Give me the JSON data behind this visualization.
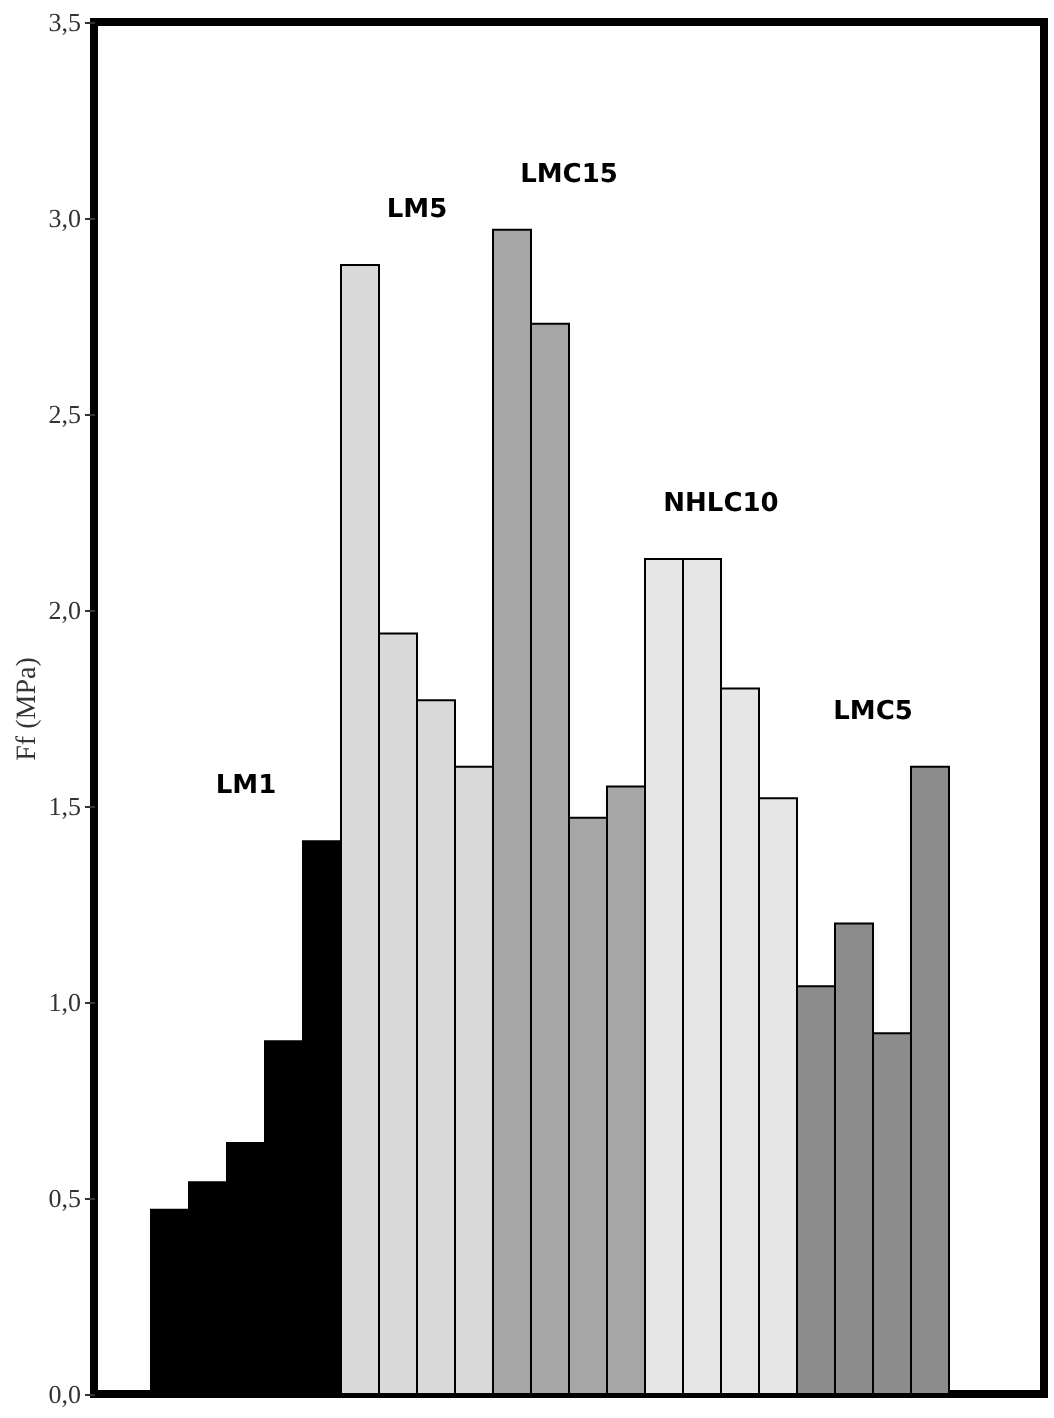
{
  "chart_data": {
    "type": "bar",
    "ylabel": "Ff (MPa)",
    "categories": [
      null,
      null,
      null,
      null,
      null,
      null,
      null,
      null,
      null,
      null,
      null,
      null,
      null,
      null,
      null,
      null,
      null,
      null,
      null,
      null,
      null
    ],
    "values": [
      0.47,
      0.54,
      0.64,
      0.9,
      1.41,
      2.88,
      1.94,
      1.77,
      1.6,
      2.97,
      2.73,
      1.47,
      1.55,
      2.13,
      2.13,
      1.8,
      1.52,
      1.04,
      1.2,
      0.92,
      1.6
    ],
    "colors": [
      "#000000",
      "#000000",
      "#000000",
      "#000000",
      "#000000",
      "#d9d9d9",
      "#d9d9d9",
      "#d9d9d9",
      "#d9d9d9",
      "#a6a6a6",
      "#a6a6a6",
      "#a6a6a6",
      "#a6a6a6",
      "#e6e6e6",
      "#e6e6e6",
      "#e6e6e6",
      "#e6e6e6",
      "#8c8c8c",
      "#8c8c8c",
      "#8c8c8c",
      "#8c8c8c"
    ],
    "annotations": [
      "LM1",
      "LM5",
      "LMC15",
      "NHLC10",
      "LMC5"
    ],
    "ylim": [
      0,
      3.5
    ],
    "yticks": [
      {
        "value": 0,
        "label": "0,0"
      },
      {
        "value": 0.5,
        "label": "0,5"
      },
      {
        "value": 1,
        "label": "1,0"
      },
      {
        "value": 1.5,
        "label": "1,5"
      },
      {
        "value": 2,
        "label": "2,0"
      },
      {
        "value": 2.5,
        "label": "2,5"
      },
      {
        "value": 3,
        "label": "3,0"
      },
      {
        "value": 3.5,
        "label": "3,5"
      }
    ],
    "tick_labels": "y",
    "grid": false,
    "legend": false
  }
}
